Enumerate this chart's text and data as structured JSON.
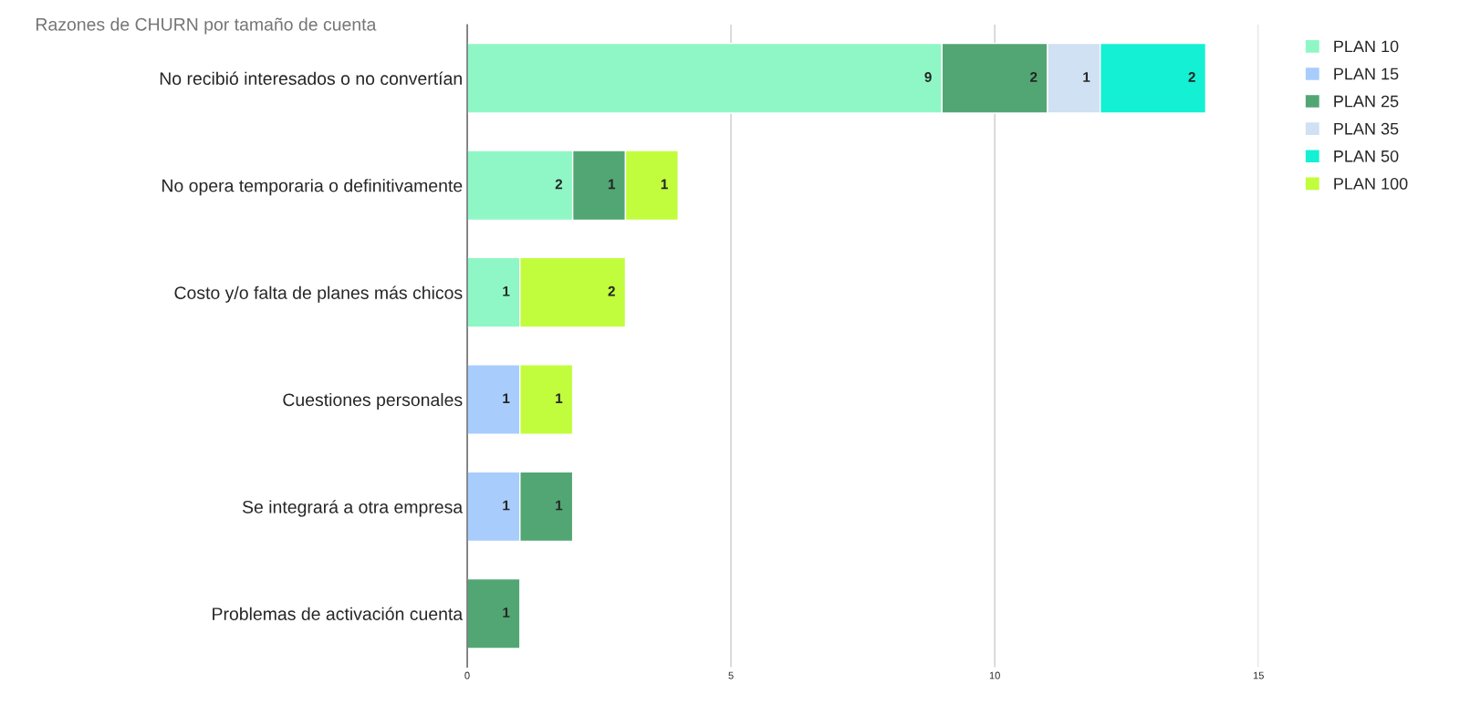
{
  "chart_data": {
    "type": "bar",
    "orientation": "horizontal",
    "stacked": true,
    "title": "Razones de CHURN por tamaño de cuenta",
    "categories": [
      "No recibió interesados o no convertían",
      "No opera temporaria o definitivamente",
      "Costo y/o falta de planes más chicos",
      "Cuestiones personales",
      "Se integrará a otra empresa",
      "Problemas de activación cuenta"
    ],
    "series": [
      {
        "name": "PLAN 10",
        "color": "#8ff7c5",
        "values": [
          9,
          2,
          1,
          null,
          null,
          null
        ]
      },
      {
        "name": "PLAN 15",
        "color": "#a8cdfc",
        "values": [
          null,
          null,
          null,
          1,
          1,
          null
        ]
      },
      {
        "name": "PLAN 25",
        "color": "#52a673",
        "values": [
          2,
          1,
          null,
          null,
          1,
          1
        ]
      },
      {
        "name": "PLAN 35",
        "color": "#cfe1f3",
        "values": [
          1,
          null,
          null,
          null,
          null,
          null
        ]
      },
      {
        "name": "PLAN 50",
        "color": "#14f0d4",
        "values": [
          2,
          null,
          null,
          null,
          null,
          null
        ]
      },
      {
        "name": "PLAN 100",
        "color": "#c1fd3d",
        "values": [
          null,
          1,
          2,
          1,
          null,
          null
        ]
      }
    ],
    "xlim": [
      0,
      15
    ],
    "xticks": [
      0,
      5,
      10,
      15
    ],
    "grid": "x",
    "legend": "top right",
    "data_labels": true
  }
}
